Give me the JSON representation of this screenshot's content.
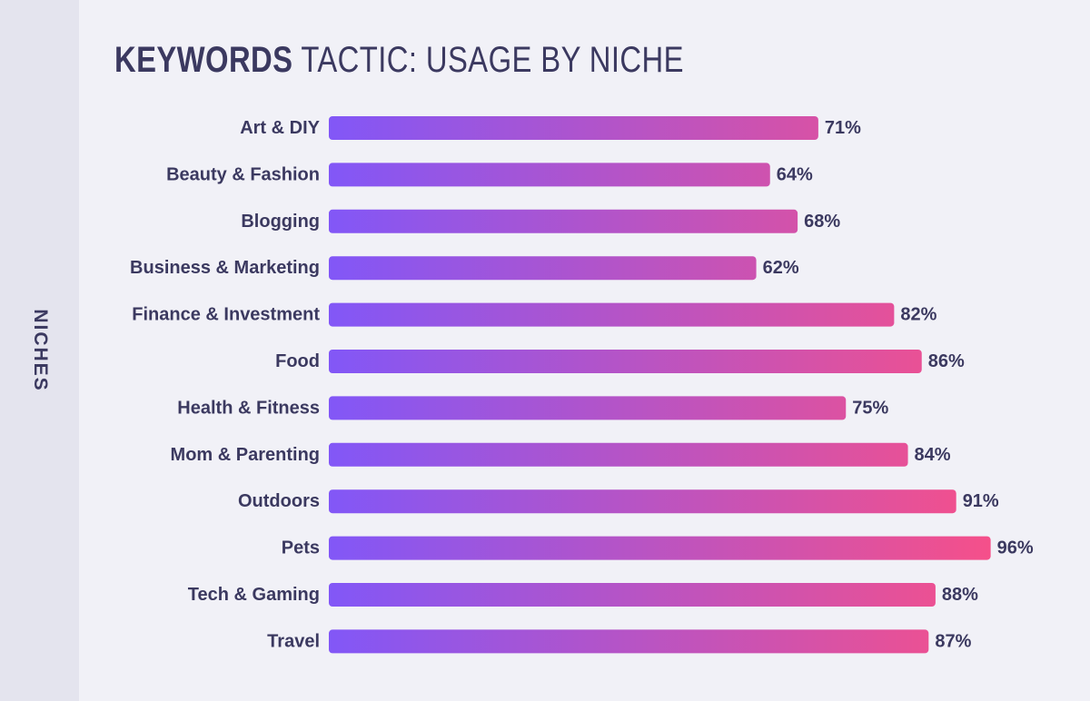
{
  "side_label": "NICHES",
  "title": {
    "strong": "KEYWORDS",
    "rest": "TACTIC: USAGE BY NICHE"
  },
  "colors": {
    "bar_start": "#8257f7",
    "bar_end": "#f5508a",
    "text": "#3b3960",
    "background": "#f1f1f7",
    "side_strip": "#e4e4ee"
  },
  "chart_data": {
    "type": "bar",
    "orientation": "horizontal",
    "title": "KEYWORDS TACTIC: USAGE BY NICHE",
    "ylabel": "NICHES",
    "xlabel": "",
    "xlim": [
      0,
      100
    ],
    "value_suffix": "%",
    "grid": false,
    "legend": "none",
    "categories": [
      "Art & DIY",
      "Beauty & Fashion",
      "Blogging",
      "Business & Marketing",
      "Finance & Investment",
      "Food",
      "Health & Fitness",
      "Mom & Parenting",
      "Outdoors",
      "Pets",
      "Tech & Gaming",
      "Travel"
    ],
    "values": [
      71,
      64,
      68,
      62,
      82,
      86,
      75,
      84,
      91,
      96,
      88,
      87
    ]
  }
}
